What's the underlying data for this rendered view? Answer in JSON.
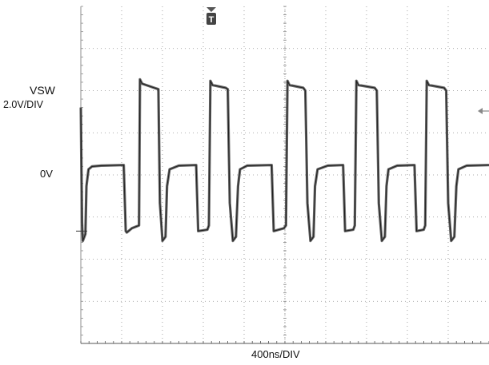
{
  "labels": {
    "channel_name": "VSW",
    "channel_scale": "2.0V/DIV",
    "zero_level": "0V",
    "time_scale": "400ns/DIV",
    "trigger_marker": "T"
  },
  "colors": {
    "trace": "#4d4d4d",
    "grid": "#8c8c8c",
    "background": "#ffffff"
  },
  "chart_data": {
    "type": "line",
    "description_of_axes": {
      "x_units": "ns",
      "y_units": "V"
    },
    "x_per_div": 400,
    "y_per_div": 2.0,
    "ylim": [
      -4.0,
      8.0
    ],
    "xlim": [
      0,
      4000
    ],
    "grid": true,
    "series": [
      {
        "points": [
          [
            0,
            4.4
          ],
          [
            4,
            3.0
          ],
          [
            12,
            0.3
          ],
          [
            20,
            -0.35
          ],
          [
            45,
            -0.1
          ],
          [
            55,
            1.6
          ],
          [
            75,
            2.2
          ],
          [
            110,
            2.3
          ],
          [
            200,
            2.33
          ],
          [
            420,
            2.35
          ],
          [
            440,
            0.0
          ],
          [
            450,
            -0.05
          ],
          [
            500,
            0.1
          ],
          [
            570,
            0.2
          ],
          [
            580,
            5.4
          ],
          [
            600,
            5.25
          ],
          [
            720,
            5.1
          ],
          [
            760,
            5.05
          ],
          [
            775,
            1.0
          ],
          [
            800,
            -0.35
          ],
          [
            830,
            -0.2
          ],
          [
            845,
            1.6
          ],
          [
            870,
            2.2
          ],
          [
            960,
            2.33
          ],
          [
            1130,
            2.35
          ],
          [
            1150,
            0.0
          ],
          [
            1240,
            0.05
          ],
          [
            1255,
            0.2
          ],
          [
            1270,
            5.35
          ],
          [
            1290,
            5.2
          ],
          [
            1420,
            5.1
          ],
          [
            1440,
            5.05
          ],
          [
            1460,
            1.0
          ],
          [
            1490,
            -0.35
          ],
          [
            1520,
            -0.2
          ],
          [
            1540,
            1.6
          ],
          [
            1560,
            2.2
          ],
          [
            1630,
            2.33
          ],
          [
            1870,
            2.35
          ],
          [
            1890,
            0.0
          ],
          [
            1990,
            0.1
          ],
          [
            2010,
            0.2
          ],
          [
            2025,
            5.35
          ],
          [
            2045,
            5.2
          ],
          [
            2180,
            5.1
          ],
          [
            2200,
            5.0
          ],
          [
            2220,
            1.0
          ],
          [
            2250,
            -0.35
          ],
          [
            2280,
            -0.2
          ],
          [
            2295,
            1.6
          ],
          [
            2320,
            2.2
          ],
          [
            2420,
            2.33
          ],
          [
            2570,
            2.35
          ],
          [
            2590,
            0.0
          ],
          [
            2670,
            0.05
          ],
          [
            2685,
            0.2
          ],
          [
            2700,
            5.35
          ],
          [
            2720,
            5.2
          ],
          [
            2880,
            5.1
          ],
          [
            2900,
            5.0
          ],
          [
            2920,
            1.0
          ],
          [
            2950,
            -0.35
          ],
          [
            2980,
            -0.2
          ],
          [
            2995,
            1.6
          ],
          [
            3015,
            2.2
          ],
          [
            3100,
            2.33
          ],
          [
            3270,
            2.35
          ],
          [
            3290,
            0.0
          ],
          [
            3360,
            0.05
          ],
          [
            3375,
            0.2
          ],
          [
            3390,
            5.35
          ],
          [
            3410,
            5.2
          ],
          [
            3560,
            5.1
          ],
          [
            3580,
            5.0
          ],
          [
            3600,
            1.0
          ],
          [
            3630,
            -0.35
          ],
          [
            3660,
            -0.2
          ],
          [
            3680,
            1.6
          ],
          [
            3700,
            2.2
          ],
          [
            3780,
            2.33
          ],
          [
            4000,
            2.35
          ]
        ]
      }
    ]
  }
}
